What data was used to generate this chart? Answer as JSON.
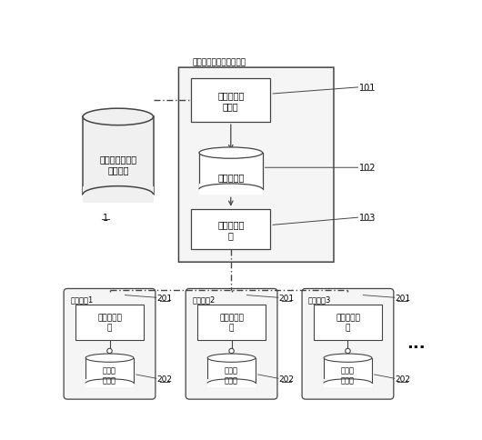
{
  "background_color": "#ffffff",
  "server_box_label": "盘点系统数据同步服务器",
  "label_1": "超市进销存系统\n主数据库",
  "label_1_id": "1",
  "box101_label": "数据后台服\n务程序",
  "box101_id": "101",
  "box102_label": "中间数据库",
  "box102_id": "102",
  "box103_label": "数据同步服\n务",
  "box103_id": "103",
  "system1_label": "盘点系统1",
  "system2_label": "盘点系统2",
  "system3_label": "盘点系统3",
  "smart_label": "智能盘点程\n序",
  "embed_label": "嵌入式\n数据库",
  "id_201": "201",
  "id_202": "202",
  "dots": "...",
  "lc": "#444444",
  "lc_light": "#888888",
  "fs": 7.0,
  "fs_small": 6.5
}
